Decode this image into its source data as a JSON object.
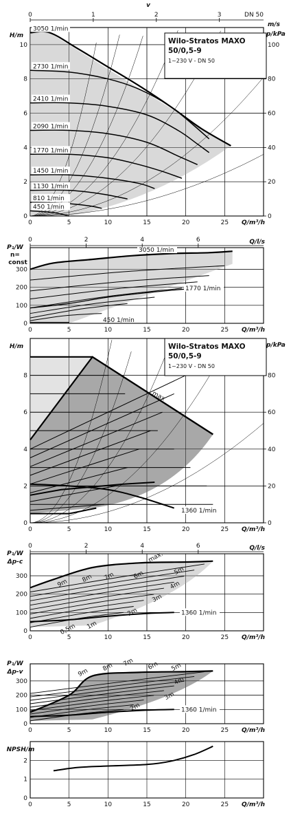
{
  "chart_data": [
    {
      "type": "line",
      "title": "Wilo-Stratos MAXO 50/0,5-9",
      "subtitle": "1~230 V - DN 50",
      "xlabel": "Q/m³/h",
      "ylabel": "H/m",
      "y2label": "p/kPa",
      "top_axis": {
        "label_main": "v",
        "label_unit": "m/s",
        "label_dn": "DN 50",
        "ticks": [
          "0",
          "1",
          "2",
          "3"
        ]
      },
      "xlim": [
        0,
        30
      ],
      "ylim": [
        0,
        11
      ],
      "y2lim": [
        0,
        110
      ],
      "xticks": [
        "0",
        "5",
        "10",
        "15",
        "20",
        "25"
      ],
      "yticks": [
        "0",
        "2",
        "4",
        "6",
        "8",
        "10"
      ],
      "y2ticks": [
        "0",
        "20",
        "40",
        "60",
        "80",
        "100"
      ],
      "grid": true,
      "series": [
        {
          "name": "3050 1/min",
          "x": [
            0,
            2.5,
            6,
            10,
            14,
            18,
            22,
            25.8
          ],
          "y": [
            10.7,
            10.7,
            9.8,
            8.7,
            7.6,
            6.4,
            5.1,
            4.1
          ]
        },
        {
          "name": "2730 1/min",
          "x": [
            0,
            5,
            10,
            14,
            18,
            21,
            23
          ],
          "y": [
            8.5,
            8.4,
            8.0,
            7.4,
            6.4,
            5.3,
            4.5
          ]
        },
        {
          "name": "2410 1/min",
          "x": [
            0,
            5,
            10,
            15,
            19,
            21.5,
            23
          ],
          "y": [
            6.6,
            6.6,
            6.4,
            5.9,
            5.0,
            4.2,
            3.7
          ]
        },
        {
          "name": "2090 1/min",
          "x": [
            0,
            5,
            10,
            15,
            19,
            21.5
          ],
          "y": [
            5.0,
            5.0,
            4.8,
            4.3,
            3.5,
            3.0
          ]
        },
        {
          "name": "1770 1/min",
          "x": [
            0,
            5,
            10,
            14,
            17,
            19.5
          ],
          "y": [
            3.6,
            3.6,
            3.4,
            3.0,
            2.6,
            2.2
          ]
        },
        {
          "name": "1450 1/min",
          "x": [
            0,
            5,
            10,
            14,
            16
          ],
          "y": [
            2.4,
            2.4,
            2.2,
            1.9,
            1.6
          ]
        },
        {
          "name": "1130 1/min",
          "x": [
            0,
            5,
            9,
            12.5
          ],
          "y": [
            1.5,
            1.5,
            1.3,
            1.0
          ]
        },
        {
          "name": "810 1/min",
          "x": [
            0,
            4,
            7.5,
            9.2
          ],
          "y": [
            0.8,
            0.75,
            0.6,
            0.45
          ]
        },
        {
          "name": "450 1/min",
          "x": [
            0,
            3,
            5
          ],
          "y": [
            0.3,
            0.2,
            0.0
          ]
        }
      ]
    },
    {
      "type": "line",
      "ylabel": "P₁/W",
      "ylabel2": "n=",
      "ylabel3": "const",
      "top_axis": {
        "label": "Q/l/s",
        "ticks": [
          "0",
          "2",
          "4",
          "6"
        ]
      },
      "xlabel": "Q/m³/h",
      "xlim": [
        0,
        30
      ],
      "ylim": [
        0,
        420
      ],
      "xticks": [
        "0",
        "5",
        "10",
        "15",
        "20",
        "25"
      ],
      "yticks": [
        "0",
        "100",
        "200",
        "300"
      ],
      "grid": true,
      "series": [
        {
          "name": "3050 1/min",
          "x": [
            0,
            3,
            8,
            13,
            18,
            23,
            26
          ],
          "y": [
            300,
            335,
            355,
            375,
            387,
            392,
            400
          ]
        },
        {
          "name": "1770 1/min",
          "x": [
            0,
            5,
            10,
            15,
            20,
            22.5
          ],
          "y": [
            85,
            110,
            145,
            170,
            190,
            195
          ]
        },
        {
          "name": "450 1/min",
          "x": [
            0,
            5
          ],
          "y": [
            5,
            5
          ]
        }
      ]
    },
    {
      "type": "area",
      "title": "Wilo-Stratos MAXO 50/0,5-9",
      "subtitle": "1~230 V - DN 50",
      "xlabel": "Q/m³/h",
      "ylabel": "H/m",
      "y2label": "p/kPa",
      "xlim": [
        0,
        30
      ],
      "ylim": [
        0,
        10
      ],
      "y2lim": [
        0,
        100
      ],
      "xticks": [
        "0",
        "5",
        "10",
        "15",
        "20",
        "25"
      ],
      "yticks": [
        "0",
        "2",
        "4",
        "6",
        "8"
      ],
      "y2ticks": [
        "0",
        "20",
        "40",
        "60",
        "80"
      ],
      "grid": true,
      "annotations": [
        "max",
        "1360 1/min"
      ],
      "series": [
        {
          "name": "max",
          "x": [
            0,
            8,
            23.5
          ],
          "y": [
            9.0,
            9.0,
            4.8
          ]
        },
        {
          "name": "1360 1/min",
          "x": [
            0,
            5,
            10,
            14,
            18.5
          ],
          "y": [
            2.1,
            2.0,
            1.8,
            1.4,
            0.8
          ]
        }
      ]
    },
    {
      "type": "line",
      "ylabel": "P₁/W",
      "ylabel2": "Δp-c",
      "top_axis": {
        "label": "Q/l/s",
        "ticks": [
          "0",
          "2",
          "4",
          "6"
        ]
      },
      "xlabel": "Q/m³/h",
      "xlim": [
        0,
        30
      ],
      "ylim": [
        0,
        420
      ],
      "xticks": [
        "0",
        "5",
        "10",
        "15",
        "20",
        "25"
      ],
      "yticks": [
        "0",
        "100",
        "200",
        "300"
      ],
      "grid": true,
      "curve_labels": [
        "max.",
        "9m",
        "8m",
        "7m",
        "6m",
        "5m",
        "4m",
        "3m",
        "2m",
        "1m",
        "0,5m",
        "1360 1/min"
      ],
      "series": [
        {
          "name": "max.",
          "x": [
            0,
            3,
            8,
            14,
            20,
            23.5
          ],
          "y": [
            235,
            280,
            345,
            370,
            375,
            380
          ]
        },
        {
          "name": "1360 1/min",
          "x": [
            0,
            5,
            10,
            15,
            18.5
          ],
          "y": [
            50,
            60,
            80,
            95,
            100
          ]
        }
      ]
    },
    {
      "type": "line",
      "ylabel": "P₁/W",
      "ylabel2": "Δp-v",
      "xlabel": "Q/m³/h",
      "xlim": [
        0,
        30
      ],
      "ylim": [
        0,
        420
      ],
      "xticks": [
        "0",
        "5",
        "10",
        "15",
        "20",
        "25"
      ],
      "yticks": [
        "0",
        "100",
        "200",
        "300"
      ],
      "grid": true,
      "curve_labels": [
        "9m",
        "8m",
        "7m",
        "6m",
        "5m",
        "4m",
        "3m",
        "2m",
        "1360 1/min"
      ],
      "series": [
        {
          "name": "max",
          "x": [
            0,
            5,
            8,
            14,
            20,
            23.5
          ],
          "y": [
            80,
            200,
            335,
            360,
            365,
            370
          ]
        },
        {
          "name": "1360 1/min",
          "x": [
            0,
            5,
            10,
            15,
            18.5
          ],
          "y": [
            50,
            60,
            80,
            95,
            100
          ]
        }
      ]
    },
    {
      "type": "line",
      "xlabel": "Q/m³/h",
      "ylabel": "NPSH/m",
      "xlim": [
        0,
        30
      ],
      "ylim": [
        0,
        3
      ],
      "xticks": [
        "0",
        "5",
        "10",
        "15",
        "20",
        "25"
      ],
      "yticks": [
        "0",
        "1",
        "2"
      ],
      "grid": true,
      "series": [
        {
          "x": [
            3,
            6,
            10,
            15,
            18,
            21,
            23.5
          ],
          "y": [
            1.45,
            1.62,
            1.7,
            1.78,
            1.95,
            2.3,
            2.75
          ]
        }
      ]
    }
  ]
}
